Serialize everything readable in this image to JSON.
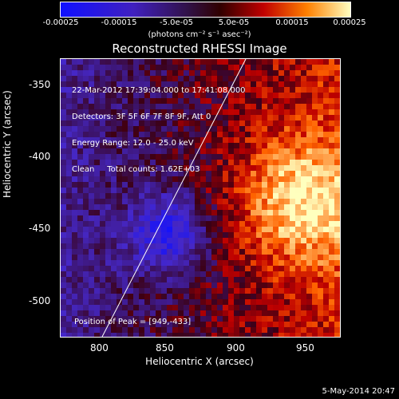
{
  "colorbar": {
    "ticks": [
      "-0.00025",
      "-0.00015",
      "-5.0e-05",
      "5.0e-05",
      "0.00015",
      "0.00025"
    ],
    "unit": "(photons cm⁻² s⁻¹ asec⁻²)"
  },
  "title": "Reconstructed RHESSI Image",
  "info": {
    "line1": "22-Mar-2012 17:39:04.000 to 17:41:08.000",
    "line2": "Detectors: 3F 5F 6F 7F 8F 9F, Att 0",
    "line3": "Energy Range: 12.0 - 25.0 keV",
    "line4": "Clean     Total counts: 1.62E+03"
  },
  "peak": "Position of Peak = [949,-433]",
  "axes": {
    "xlabel": "Heliocentric X (arcsec)",
    "ylabel": "Heliocentric Y (arcsec)",
    "xticks": [
      "800",
      "850",
      "900",
      "950"
    ],
    "yticks": [
      "-350",
      "-400",
      "-450",
      "-500"
    ]
  },
  "footer": "5-May-2014 20:47"
}
